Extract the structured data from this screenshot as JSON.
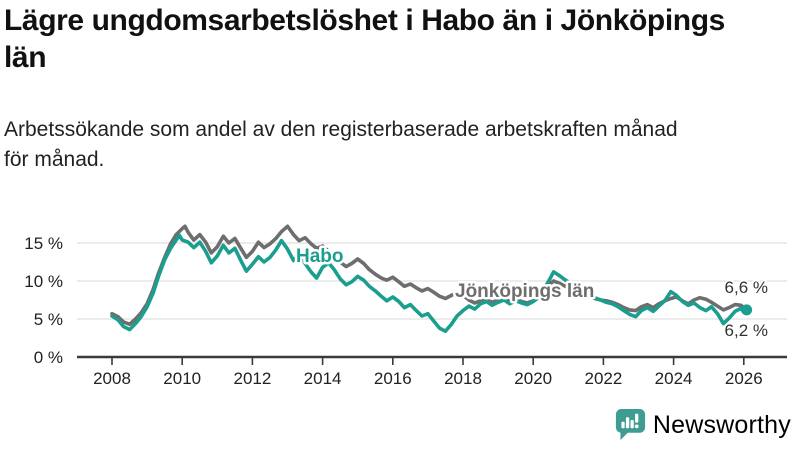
{
  "header": {
    "title_lines": [
      "Lägre ungdomsarbetslöshet i Habo än i Jönköpings",
      "län"
    ],
    "subtitle_lines": [
      "Arbetssökande som andel av den registerbaserade arbetskraften månad",
      "för månad."
    ]
  },
  "logo": {
    "text": "Newsworthy",
    "color": "#3f9c93"
  },
  "colors": {
    "habo": "#1a9e8f",
    "jonkopings_lan": "#6e6e6e",
    "grid": "#e0e0e0",
    "axis": "#3a3a3a",
    "tick_text": "#222222"
  },
  "chart_data": {
    "type": "line",
    "unit": "%",
    "x_axis": {
      "min": 2007.0,
      "max": 2027.2,
      "ticks": [
        {
          "value": 2008,
          "label": "2008"
        },
        {
          "value": 2010,
          "label": "2010"
        },
        {
          "value": 2012,
          "label": "2012"
        },
        {
          "value": 2014,
          "label": "2014"
        },
        {
          "value": 2016,
          "label": "2016"
        },
        {
          "value": 2018,
          "label": "2018"
        },
        {
          "value": 2020,
          "label": "2020"
        },
        {
          "value": 2022,
          "label": "2022"
        },
        {
          "value": 2024,
          "label": "2024"
        },
        {
          "value": 2026,
          "label": "2026"
        }
      ]
    },
    "y_axis": {
      "min": 0,
      "max": 18,
      "ticks": [
        {
          "value": 0,
          "label": "0 %"
        },
        {
          "value": 5,
          "label": "5 %"
        },
        {
          "value": 10,
          "label": "10 %"
        },
        {
          "value": 15,
          "label": "15 %"
        }
      ]
    },
    "series": [
      {
        "name": "Habo",
        "color": "#1a9e8f",
        "end_label": "6,2 %",
        "end_value": 6.2,
        "end_dot": true,
        "points": [
          [
            2008.0,
            5.4
          ],
          [
            2008.17,
            4.9
          ],
          [
            2008.33,
            4.0
          ],
          [
            2008.5,
            3.6
          ],
          [
            2008.67,
            4.4
          ],
          [
            2008.83,
            5.3
          ],
          [
            2009.0,
            6.6
          ],
          [
            2009.17,
            8.4
          ],
          [
            2009.33,
            10.7
          ],
          [
            2009.5,
            12.8
          ],
          [
            2009.67,
            14.3
          ],
          [
            2009.83,
            15.4
          ],
          [
            2009.92,
            16.0
          ],
          [
            2010.0,
            15.4
          ],
          [
            2010.17,
            15.1
          ],
          [
            2010.33,
            14.4
          ],
          [
            2010.5,
            15.1
          ],
          [
            2010.67,
            13.9
          ],
          [
            2010.83,
            12.4
          ],
          [
            2011.0,
            13.3
          ],
          [
            2011.17,
            14.7
          ],
          [
            2011.33,
            13.7
          ],
          [
            2011.5,
            14.3
          ],
          [
            2011.67,
            12.7
          ],
          [
            2011.83,
            11.3
          ],
          [
            2012.0,
            12.2
          ],
          [
            2012.17,
            13.2
          ],
          [
            2012.33,
            12.5
          ],
          [
            2012.5,
            13.1
          ],
          [
            2012.67,
            14.1
          ],
          [
            2012.83,
            15.3
          ],
          [
            2013.0,
            14.2
          ],
          [
            2013.17,
            12.7
          ],
          [
            2013.33,
            13.5
          ],
          [
            2013.5,
            12.3
          ],
          [
            2013.67,
            11.2
          ],
          [
            2013.83,
            10.4
          ],
          [
            2014.0,
            11.8
          ],
          [
            2014.17,
            12.4
          ],
          [
            2014.33,
            11.5
          ],
          [
            2014.5,
            10.3
          ],
          [
            2014.67,
            9.5
          ],
          [
            2014.83,
            9.9
          ],
          [
            2015.0,
            10.6
          ],
          [
            2015.17,
            10.1
          ],
          [
            2015.33,
            9.3
          ],
          [
            2015.5,
            8.7
          ],
          [
            2015.67,
            8.0
          ],
          [
            2015.83,
            7.4
          ],
          [
            2016.0,
            7.9
          ],
          [
            2016.17,
            7.3
          ],
          [
            2016.33,
            6.5
          ],
          [
            2016.5,
            6.9
          ],
          [
            2016.67,
            6.1
          ],
          [
            2016.83,
            5.4
          ],
          [
            2017.0,
            5.7
          ],
          [
            2017.17,
            4.7
          ],
          [
            2017.33,
            3.8
          ],
          [
            2017.5,
            3.4
          ],
          [
            2017.67,
            4.3
          ],
          [
            2017.83,
            5.4
          ],
          [
            2018.0,
            6.1
          ],
          [
            2018.17,
            6.7
          ],
          [
            2018.33,
            6.3
          ],
          [
            2018.5,
            7.0
          ],
          [
            2018.67,
            7.3
          ],
          [
            2018.83,
            6.8
          ],
          [
            2019.0,
            7.2
          ],
          [
            2019.17,
            7.5
          ],
          [
            2019.33,
            7.0
          ],
          [
            2019.5,
            7.4
          ],
          [
            2019.67,
            7.1
          ],
          [
            2019.83,
            6.9
          ],
          [
            2020.0,
            7.3
          ],
          [
            2020.17,
            7.9
          ],
          [
            2020.33,
            9.1
          ],
          [
            2020.5,
            10.5
          ],
          [
            2020.58,
            11.2
          ],
          [
            2020.75,
            10.7
          ],
          [
            2020.92,
            10.1
          ],
          [
            2021.08,
            9.7
          ],
          [
            2021.25,
            9.2
          ],
          [
            2021.42,
            8.7
          ],
          [
            2021.58,
            8.2
          ],
          [
            2021.75,
            7.8
          ],
          [
            2021.92,
            7.5
          ],
          [
            2022.08,
            7.2
          ],
          [
            2022.25,
            7.0
          ],
          [
            2022.42,
            6.6
          ],
          [
            2022.58,
            6.1
          ],
          [
            2022.75,
            5.6
          ],
          [
            2022.92,
            5.3
          ],
          [
            2023.08,
            6.1
          ],
          [
            2023.25,
            6.5
          ],
          [
            2023.42,
            6.0
          ],
          [
            2023.58,
            6.7
          ],
          [
            2023.75,
            7.4
          ],
          [
            2023.92,
            8.6
          ],
          [
            2024.08,
            8.1
          ],
          [
            2024.25,
            7.3
          ],
          [
            2024.42,
            6.8
          ],
          [
            2024.58,
            7.1
          ],
          [
            2024.75,
            6.5
          ],
          [
            2024.92,
            6.1
          ],
          [
            2025.08,
            6.6
          ],
          [
            2025.25,
            5.7
          ],
          [
            2025.42,
            4.4
          ],
          [
            2025.58,
            5.1
          ],
          [
            2025.75,
            6.0
          ],
          [
            2025.92,
            6.4
          ],
          [
            2026.0,
            5.9
          ],
          [
            2026.08,
            6.2
          ]
        ]
      },
      {
        "name": "Jönköpings län",
        "color": "#6e6e6e",
        "end_label": "6,6 %",
        "end_value": 6.6,
        "end_dot": false,
        "points": [
          [
            2008.0,
            5.7
          ],
          [
            2008.17,
            5.3
          ],
          [
            2008.33,
            4.6
          ],
          [
            2008.5,
            4.3
          ],
          [
            2008.67,
            5.0
          ],
          [
            2008.83,
            5.8
          ],
          [
            2009.0,
            7.0
          ],
          [
            2009.17,
            8.9
          ],
          [
            2009.33,
            11.1
          ],
          [
            2009.5,
            13.1
          ],
          [
            2009.67,
            14.9
          ],
          [
            2009.83,
            16.1
          ],
          [
            2010.0,
            16.9
          ],
          [
            2010.08,
            17.2
          ],
          [
            2010.17,
            16.4
          ],
          [
            2010.33,
            15.4
          ],
          [
            2010.5,
            16.1
          ],
          [
            2010.67,
            15.1
          ],
          [
            2010.83,
            13.7
          ],
          [
            2011.0,
            14.5
          ],
          [
            2011.17,
            15.9
          ],
          [
            2011.33,
            15.0
          ],
          [
            2011.5,
            15.6
          ],
          [
            2011.67,
            14.3
          ],
          [
            2011.83,
            13.1
          ],
          [
            2012.0,
            13.9
          ],
          [
            2012.17,
            15.1
          ],
          [
            2012.33,
            14.4
          ],
          [
            2012.5,
            14.9
          ],
          [
            2012.67,
            15.6
          ],
          [
            2012.83,
            16.5
          ],
          [
            2013.0,
            17.2
          ],
          [
            2013.17,
            16.1
          ],
          [
            2013.33,
            15.3
          ],
          [
            2013.5,
            15.7
          ],
          [
            2013.67,
            14.9
          ],
          [
            2013.83,
            14.3
          ],
          [
            2014.0,
            14.6
          ],
          [
            2014.17,
            13.9
          ],
          [
            2014.33,
            13.3
          ],
          [
            2014.5,
            12.5
          ],
          [
            2014.67,
            11.9
          ],
          [
            2014.83,
            12.3
          ],
          [
            2015.0,
            12.9
          ],
          [
            2015.17,
            12.3
          ],
          [
            2015.33,
            11.5
          ],
          [
            2015.5,
            10.9
          ],
          [
            2015.67,
            10.4
          ],
          [
            2015.83,
            10.1
          ],
          [
            2016.0,
            10.5
          ],
          [
            2016.17,
            9.9
          ],
          [
            2016.33,
            9.3
          ],
          [
            2016.5,
            9.6
          ],
          [
            2016.67,
            9.1
          ],
          [
            2016.83,
            8.7
          ],
          [
            2017.0,
            9.0
          ],
          [
            2017.17,
            8.5
          ],
          [
            2017.33,
            8.0
          ],
          [
            2017.5,
            7.7
          ],
          [
            2017.67,
            8.1
          ],
          [
            2017.83,
            8.5
          ],
          [
            2018.0,
            8.1
          ],
          [
            2018.17,
            7.5
          ],
          [
            2018.33,
            7.1
          ],
          [
            2018.5,
            7.4
          ],
          [
            2018.67,
            7.6
          ],
          [
            2018.83,
            7.2
          ],
          [
            2019.0,
            7.5
          ],
          [
            2019.17,
            7.7
          ],
          [
            2019.33,
            7.3
          ],
          [
            2019.5,
            7.6
          ],
          [
            2019.67,
            7.3
          ],
          [
            2019.83,
            7.1
          ],
          [
            2020.0,
            7.4
          ],
          [
            2020.17,
            8.0
          ],
          [
            2020.33,
            8.9
          ],
          [
            2020.5,
            9.7
          ],
          [
            2020.58,
            10.0
          ],
          [
            2020.75,
            9.7
          ],
          [
            2020.92,
            9.3
          ],
          [
            2021.08,
            9.0
          ],
          [
            2021.25,
            8.7
          ],
          [
            2021.42,
            8.3
          ],
          [
            2021.58,
            8.0
          ],
          [
            2021.75,
            7.7
          ],
          [
            2021.92,
            7.5
          ],
          [
            2022.08,
            7.4
          ],
          [
            2022.25,
            7.2
          ],
          [
            2022.42,
            6.9
          ],
          [
            2022.58,
            6.5
          ],
          [
            2022.75,
            6.2
          ],
          [
            2022.92,
            6.1
          ],
          [
            2023.08,
            6.6
          ],
          [
            2023.25,
            6.9
          ],
          [
            2023.42,
            6.5
          ],
          [
            2023.58,
            7.0
          ],
          [
            2023.75,
            7.4
          ],
          [
            2023.92,
            7.7
          ],
          [
            2024.08,
            7.9
          ],
          [
            2024.25,
            7.4
          ],
          [
            2024.42,
            7.0
          ],
          [
            2024.58,
            7.5
          ],
          [
            2024.75,
            7.8
          ],
          [
            2024.92,
            7.6
          ],
          [
            2025.08,
            7.2
          ],
          [
            2025.25,
            6.7
          ],
          [
            2025.42,
            6.2
          ],
          [
            2025.58,
            6.5
          ],
          [
            2025.75,
            6.9
          ],
          [
            2025.92,
            6.8
          ],
          [
            2026.0,
            6.5
          ],
          [
            2026.08,
            6.6
          ]
        ]
      }
    ]
  }
}
